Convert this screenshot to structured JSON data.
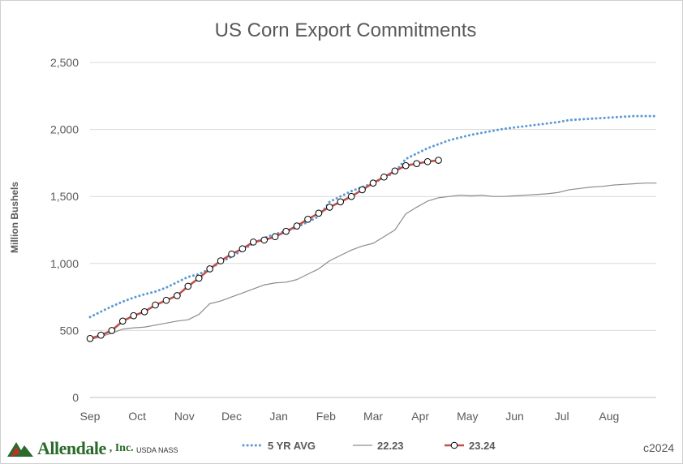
{
  "chart_data": {
    "type": "line",
    "title": "US Corn Export Commitments",
    "xlabel": "",
    "ylabel": "Million Bushels",
    "ylim": [
      0,
      2500
    ],
    "yticks": [
      0,
      500,
      1000,
      1500,
      2000,
      2500
    ],
    "ytick_labels": [
      "0",
      "500",
      "1,000",
      "1,500",
      "2,000",
      "2,500"
    ],
    "x_months": [
      "Sep",
      "Oct",
      "Nov",
      "Dec",
      "Jan",
      "Feb",
      "Mar",
      "Apr",
      "May",
      "Jun",
      "Jul",
      "Aug"
    ],
    "xlim": [
      0,
      52
    ],
    "grid": true,
    "legend_position": "bottom",
    "series": [
      {
        "name": "5 YR AVG",
        "style": "dotted",
        "color": "#5b9bd5",
        "x": [
          0,
          1,
          2,
          3,
          4,
          5,
          6,
          7,
          8,
          9,
          10,
          11,
          12,
          13,
          14,
          15,
          16,
          17,
          18,
          19,
          20,
          21,
          22,
          23,
          24,
          25,
          26,
          27,
          28,
          29,
          30,
          31,
          32,
          33,
          34,
          35,
          36,
          37,
          38,
          39,
          40,
          41,
          42,
          43,
          44,
          45,
          46,
          47,
          48,
          49,
          50,
          51,
          52
        ],
        "values": [
          600,
          640,
          680,
          715,
          745,
          770,
          790,
          820,
          860,
          900,
          920,
          960,
          1010,
          1050,
          1100,
          1150,
          1190,
          1220,
          1240,
          1270,
          1310,
          1350,
          1460,
          1500,
          1540,
          1570,
          1600,
          1640,
          1680,
          1780,
          1820,
          1860,
          1890,
          1920,
          1940,
          1960,
          1975,
          1990,
          2005,
          2015,
          2025,
          2035,
          2045,
          2055,
          2070,
          2075,
          2080,
          2085,
          2090,
          2095,
          2100,
          2100,
          2100
        ]
      },
      {
        "name": "22.23",
        "style": "solid-thin",
        "color": "#8c8c8c",
        "x": [
          0,
          1,
          2,
          3,
          4,
          5,
          6,
          7,
          8,
          9,
          10,
          11,
          12,
          13,
          14,
          15,
          16,
          17,
          18,
          19,
          20,
          21,
          22,
          23,
          24,
          25,
          26,
          27,
          28,
          29,
          30,
          31,
          32,
          33,
          34,
          35,
          36,
          37,
          38,
          39,
          40,
          41,
          42,
          43,
          44,
          45,
          46,
          47,
          48,
          49,
          50,
          51,
          52
        ],
        "values": [
          430,
          455,
          480,
          510,
          520,
          525,
          540,
          555,
          570,
          580,
          620,
          700,
          720,
          750,
          780,
          810,
          840,
          855,
          860,
          880,
          920,
          960,
          1020,
          1060,
          1100,
          1130,
          1150,
          1200,
          1250,
          1370,
          1420,
          1465,
          1490,
          1500,
          1510,
          1505,
          1510,
          1500,
          1500,
          1505,
          1510,
          1515,
          1520,
          1530,
          1550,
          1560,
          1570,
          1575,
          1585,
          1590,
          1595,
          1600,
          1600
        ]
      },
      {
        "name": "23.24",
        "style": "solid-markers",
        "color": "#c0504d",
        "x": [
          0,
          1,
          2,
          3,
          4,
          5,
          6,
          7,
          8,
          9,
          10,
          11,
          12,
          13,
          14,
          15,
          16,
          17,
          18,
          19,
          20,
          21,
          22,
          23,
          24,
          25,
          26,
          27,
          28,
          29,
          30,
          31,
          32
        ],
        "values": [
          440,
          465,
          500,
          570,
          610,
          640,
          690,
          725,
          760,
          830,
          890,
          960,
          1020,
          1070,
          1110,
          1160,
          1175,
          1200,
          1240,
          1280,
          1330,
          1375,
          1420,
          1460,
          1500,
          1550,
          1600,
          1645,
          1690,
          1730,
          1745,
          1760,
          1770
        ]
      }
    ]
  },
  "branding": {
    "logo_name": "Allendale",
    "logo_suffix": ", Inc.",
    "source": "USDA NASS",
    "copyright": "c2024"
  }
}
